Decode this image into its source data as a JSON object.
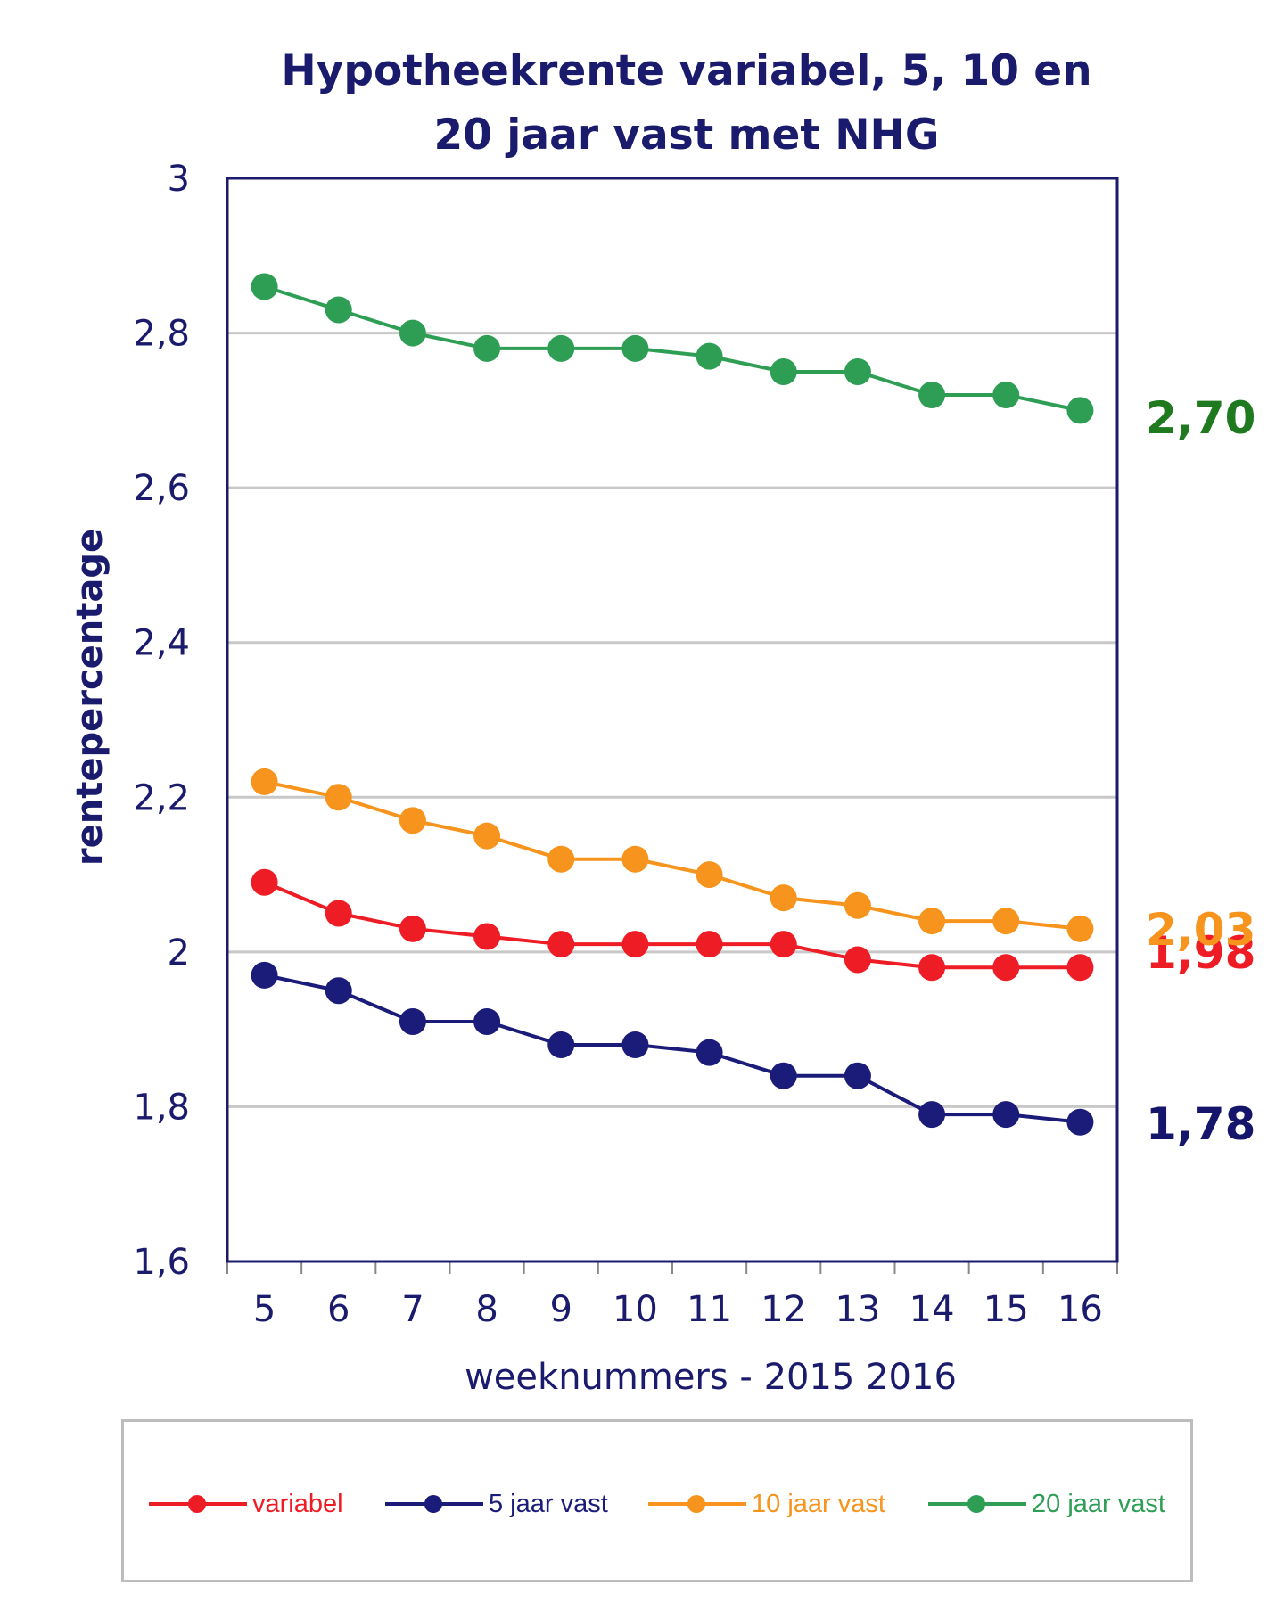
{
  "chart_data": {
    "type": "line",
    "title": "Hypotheekrente variabel, 5, 10 en 20 jaar vast met NHG",
    "title_lines": [
      "Hypotheekrente variabel, 5, 10 en",
      "20 jaar vast met NHG"
    ],
    "xlabel": "weeknummers - 2015 2016",
    "ylabel": "rentepercentage",
    "x": [
      "5",
      "6",
      "7",
      "8",
      "9",
      "10",
      "11",
      "12",
      "13",
      "14",
      "15",
      "16"
    ],
    "ylim": [
      1.6,
      3.0
    ],
    "yticks": [
      {
        "value": 1.6,
        "label": "1,6"
      },
      {
        "value": 1.8,
        "label": "1,8"
      },
      {
        "value": 2.0,
        "label": "2"
      },
      {
        "value": 2.2,
        "label": "2,2"
      },
      {
        "value": 2.4,
        "label": "2,4"
      },
      {
        "value": 2.6,
        "label": "2,6"
      },
      {
        "value": 2.8,
        "label": "2,8"
      },
      {
        "value": 3.0,
        "label": "3"
      }
    ],
    "grid": "horizontal",
    "legend_position": "bottom",
    "series": [
      {
        "name": "variabel",
        "color": "#ee1c25",
        "end_label": "1,98",
        "values": [
          2.09,
          2.05,
          2.03,
          2.02,
          2.01,
          2.01,
          2.01,
          2.01,
          1.99,
          1.98,
          1.98,
          1.98
        ]
      },
      {
        "name": "5 jaar vast",
        "color": "#1b1b7a",
        "end_label": "1,78",
        "values": [
          1.97,
          1.95,
          1.91,
          1.91,
          1.88,
          1.88,
          1.87,
          1.84,
          1.84,
          1.79,
          1.79,
          1.78
        ]
      },
      {
        "name": "10 jaar vast",
        "color": "#f7941d",
        "end_label": "2,03",
        "values": [
          2.22,
          2.2,
          2.17,
          2.15,
          2.12,
          2.12,
          2.1,
          2.07,
          2.06,
          2.04,
          2.04,
          2.03
        ]
      },
      {
        "name": "20 jaar vast",
        "color": "#2e9e55",
        "end_label": "2,70",
        "values": [
          2.86,
          2.83,
          2.8,
          2.78,
          2.78,
          2.78,
          2.77,
          2.75,
          2.75,
          2.72,
          2.72,
          2.7
        ]
      }
    ],
    "end_label_colors": {
      "variabel": "#ee1c25",
      "5 jaar vast": "#15156b",
      "10 jaar vast": "#f7941d",
      "20 jaar vast": "#1f7a1f"
    },
    "colors": {
      "axis": "#1b1b6e",
      "grid": "#c8c8c8",
      "text": "#1b1b6e"
    }
  }
}
